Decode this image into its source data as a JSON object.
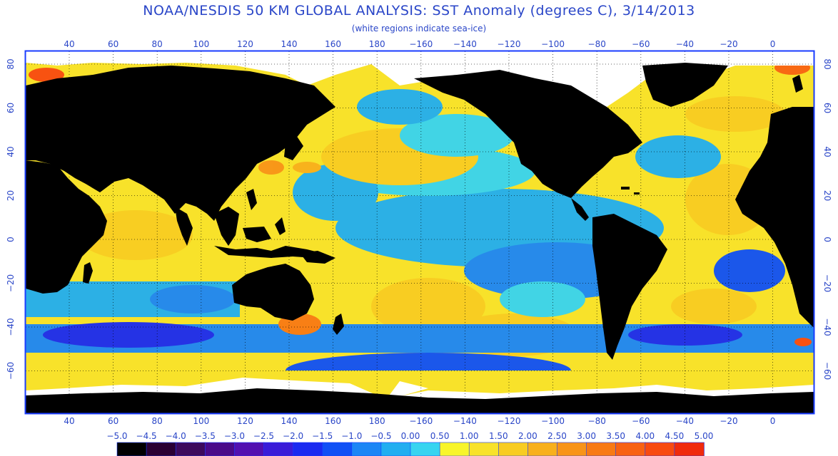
{
  "title": "NOAA/NESDIS 50 KM GLOBAL ANALYSIS: SST Anomaly (degrees C), 3/14/2013",
  "subtitle": "(white regions indicate sea-ice)",
  "longitude_ticks": [
    "40",
    "60",
    "80",
    "100",
    "120",
    "140",
    "160",
    "180",
    "−160",
    "−140",
    "−120",
    "−100",
    "−80",
    "−60",
    "−40",
    "−20",
    "0"
  ],
  "latitude_ticks": [
    "80",
    "60",
    "40",
    "20",
    "0",
    "−20",
    "−40",
    "−60"
  ],
  "colorbar": {
    "labels": [
      "−5.0",
      "−4.5",
      "−4.0",
      "−3.5",
      "−3.0",
      "−2.5",
      "−2.0",
      "−1.5",
      "−1.0",
      "−0.5",
      "0.00",
      "0.50",
      "1.00",
      "1.50",
      "2.00",
      "2.50",
      "3.00",
      "3.50",
      "4.00",
      "4.50",
      "5.00"
    ],
    "colors": [
      "#000000",
      "#2a0033",
      "#3d0a5c",
      "#4a0a88",
      "#5210b0",
      "#3a1cd8",
      "#1a2af0",
      "#1050f5",
      "#1c86f5",
      "#22aef0",
      "#38d4f0",
      "#f8f52a",
      "#f8e22a",
      "#f8cc22",
      "#f8b01c",
      "#f89418",
      "#f87a14",
      "#f86212",
      "#f84a10",
      "#f02a0c"
    ]
  },
  "legend_colors": {
    "land": "#000000",
    "sea_ice": "#ffffff",
    "frame": "#1a3cff"
  }
}
